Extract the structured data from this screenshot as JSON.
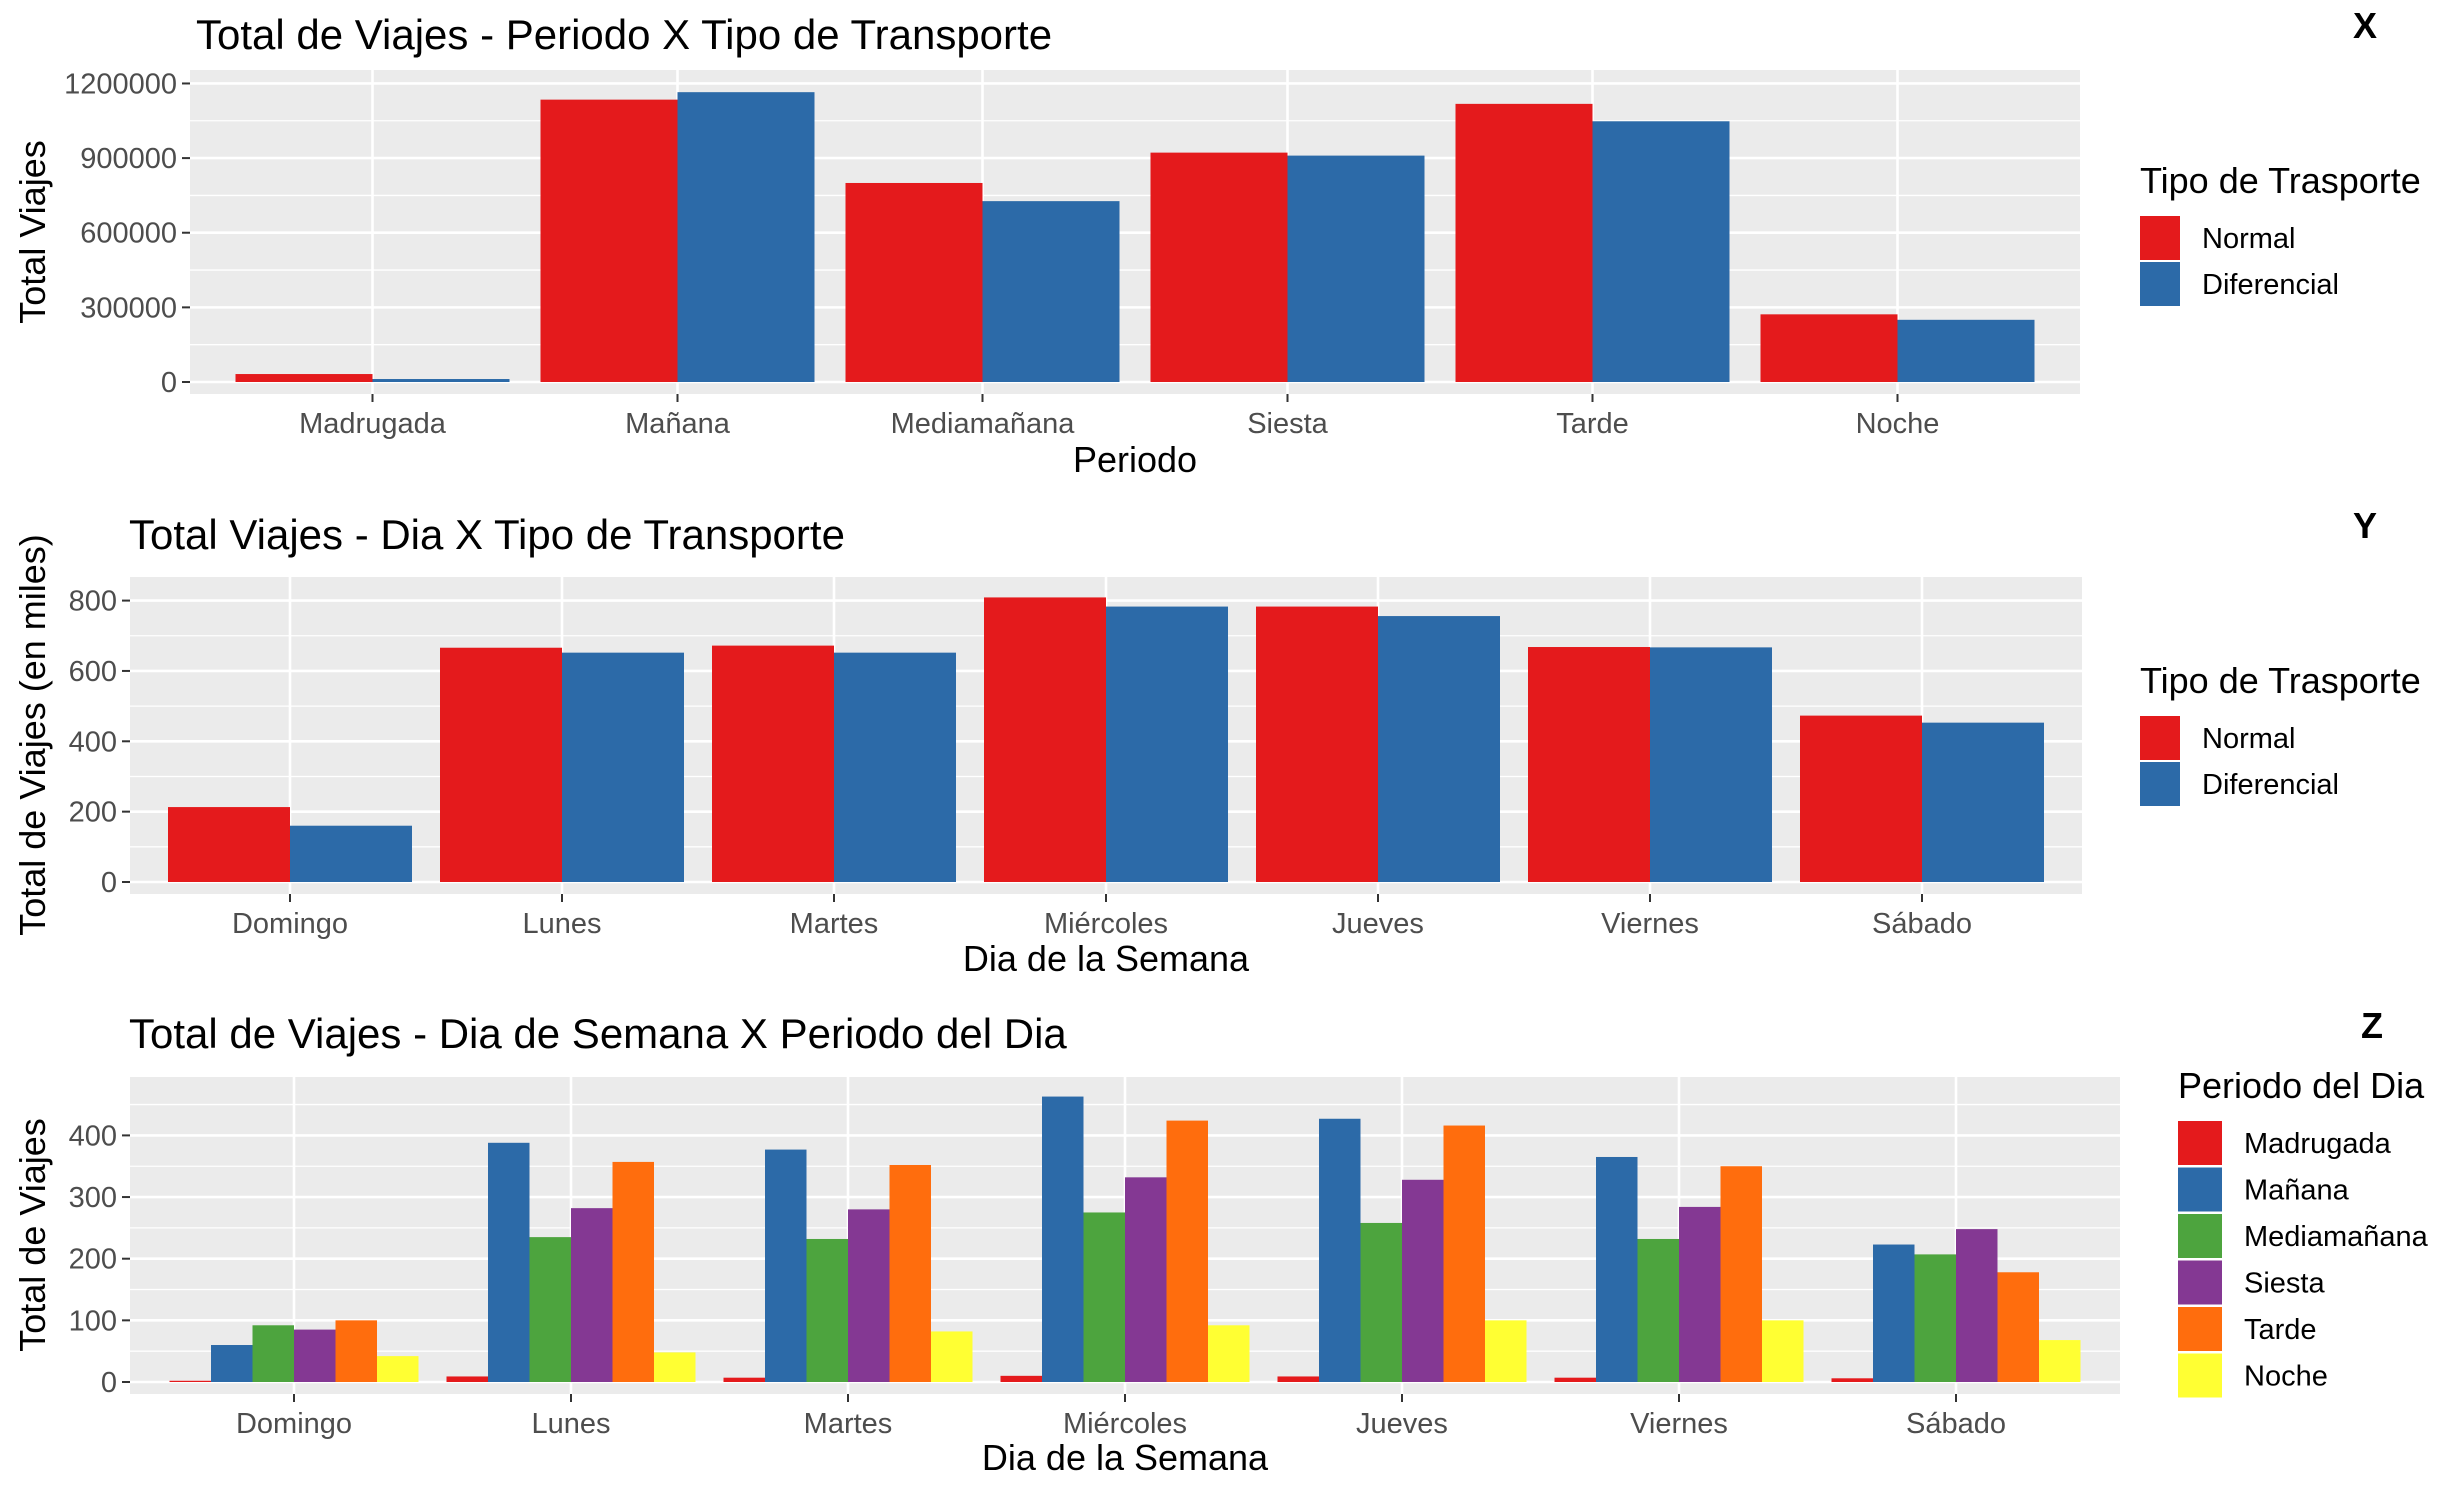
{
  "chart_data": [
    {
      "type": "bar",
      "tag": "X",
      "title": "Total de Viajes - Periodo X Tipo de Transporte",
      "xlabel": "Periodo",
      "ylabel": "Total Viajes",
      "categories": [
        "Madrugada",
        "Mañana",
        "Mediamañana",
        "Siesta",
        "Tarde",
        "Noche"
      ],
      "series": [
        {
          "name": "Normal",
          "color": "#e41a1c",
          "values": [
            32000,
            1135000,
            800000,
            922000,
            1118000,
            272000
          ]
        },
        {
          "name": "Diferencial",
          "color": "#2c6aa8",
          "values": [
            12000,
            1165000,
            727000,
            910000,
            1048000,
            250000
          ]
        }
      ],
      "ylim": [
        0,
        1230000
      ],
      "yticks": [
        0,
        300000,
        600000,
        900000,
        1200000
      ],
      "ytick_labels": [
        "0",
        "300000",
        "600000",
        "900000",
        "1200000"
      ],
      "legend": {
        "title": "Tipo de Trasporte",
        "position": "right"
      },
      "grid": true
    },
    {
      "type": "bar",
      "tag": "Y",
      "title": "Total Viajes - Dia X Tipo de Transporte",
      "xlabel": "Dia de la Semana",
      "ylabel": "Total de Viajes (en miles)",
      "categories": [
        "Domingo",
        "Lunes",
        "Martes",
        "Miércoles",
        "Jueves",
        "Viernes",
        "Sábado"
      ],
      "series": [
        {
          "name": "Normal",
          "color": "#e41a1c",
          "values": [
            213,
            666,
            672,
            809,
            783,
            668,
            473
          ]
        },
        {
          "name": "Diferencial",
          "color": "#2c6aa8",
          "values": [
            160,
            652,
            652,
            783,
            756,
            667,
            453
          ]
        }
      ],
      "ylim": [
        0,
        850
      ],
      "yticks": [
        0,
        200,
        400,
        600,
        800
      ],
      "ytick_labels": [
        "0",
        "200",
        "400",
        "600",
        "800"
      ],
      "legend": {
        "title": "Tipo de Trasporte",
        "position": "right"
      },
      "grid": true
    },
    {
      "type": "bar",
      "tag": "Z",
      "title": "Total de Viajes - Dia de Semana X Periodo del Dia",
      "xlabel": "Dia de la Semana",
      "ylabel": "Total de Viajes",
      "categories": [
        "Domingo",
        "Lunes",
        "Martes",
        "Miércoles",
        "Jueves",
        "Viernes",
        "Sábado"
      ],
      "series": [
        {
          "name": "Madrugada",
          "color": "#e41a1c",
          "values": [
            2,
            9,
            7,
            10,
            9,
            7,
            6
          ]
        },
        {
          "name": "Mañana",
          "color": "#2c6aa8",
          "values": [
            60,
            388,
            377,
            463,
            427,
            365,
            223
          ]
        },
        {
          "name": "Mediamañana",
          "color": "#4da43e",
          "values": [
            92,
            235,
            232,
            275,
            258,
            232,
            207
          ]
        },
        {
          "name": "Siesta",
          "color": "#843893",
          "values": [
            85,
            282,
            280,
            332,
            328,
            284,
            248
          ]
        },
        {
          "name": "Tarde",
          "color": "#ff6d0d",
          "values": [
            100,
            357,
            352,
            424,
            416,
            350,
            178
          ]
        },
        {
          "name": "Noche",
          "color": "#ffff33",
          "values": [
            42,
            48,
            82,
            92,
            100,
            100,
            68
          ]
        }
      ],
      "ylim": [
        0,
        485
      ],
      "yticks": [
        0,
        100,
        200,
        300,
        400
      ],
      "ytick_labels": [
        "0",
        "100",
        "200",
        "300",
        "400"
      ],
      "legend": {
        "title": "Periodo del Dia",
        "position": "right"
      },
      "grid": true
    }
  ]
}
